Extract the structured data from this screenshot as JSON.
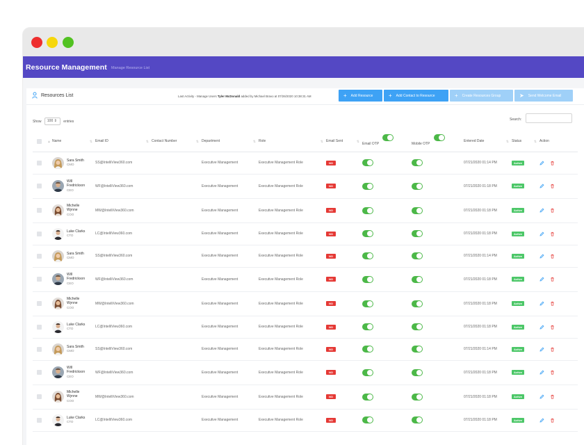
{
  "window": {
    "controls": [
      "close",
      "minimize",
      "maximize"
    ]
  },
  "app": {
    "title": "Resource Management",
    "breadcrumb": "Manage Resource List"
  },
  "list": {
    "title": "Resources List",
    "activity_prefix": "Last Activity - Manage Users",
    "activity_user": "Tyler McDonald",
    "activity_suffix": "added by Michael Bravo at 07/26/2020 10:38:31 AM"
  },
  "buttons": {
    "add_resource": "Add Resource",
    "add_contact": "Add Contact to Resource",
    "create_group": "Create Resources Group",
    "send_welcome": "Send Welcome Email"
  },
  "controls": {
    "show_label": "Show",
    "entries_value": "100",
    "entries_label": "entries",
    "search_label": "Search:"
  },
  "columns": [
    "Name",
    "Email ID",
    "Contact Number",
    "Department",
    "Role",
    "Email Sent",
    "Email OTP",
    "Mobile OTP",
    "Entered Date",
    "Status",
    "Action"
  ],
  "rows": [
    {
      "first": "Sara Smith",
      "last": "",
      "title": "CMO",
      "email": "SS@IntelliView360.com",
      "department": "Executive Management",
      "role": "Executive Management Role",
      "sent": "NO",
      "date": "07/21/2020 01:14 PM",
      "status": "Active",
      "avatar": "f1"
    },
    {
      "first": "Will",
      "last": "Fredrickson",
      "title": "CEO",
      "email": "WF@IntelliView360.com",
      "department": "Executive Management",
      "role": "Executive Management Role",
      "sent": "NO",
      "date": "07/21/2020 01:18 PM",
      "status": "Active",
      "avatar": "m1"
    },
    {
      "first": "Michelle",
      "last": "Wynne",
      "title": "COO",
      "email": "MW@IntelliView360.com",
      "department": "Executive Management",
      "role": "Executive Management Role",
      "sent": "NO",
      "date": "07/21/2020 01:18 PM",
      "status": "Active",
      "avatar": "f2"
    },
    {
      "first": "Luke Clarks",
      "last": "",
      "title": "CTO",
      "email": "LC@IntelliView360.com",
      "department": "Executive Management",
      "role": "Executive Management Role",
      "sent": "NO",
      "date": "07/21/2020 01:18 PM",
      "status": "Active",
      "avatar": "m2"
    },
    {
      "first": "Sara Smith",
      "last": "",
      "title": "CMO",
      "email": "SS@IntelliView360.com",
      "department": "Executive Management",
      "role": "Executive Management Role",
      "sent": "NO",
      "date": "07/21/2020 01:14 PM",
      "status": "Active",
      "avatar": "f1"
    },
    {
      "first": "Will",
      "last": "Fredrickson",
      "title": "CEO",
      "email": "WF@IntelliView360.com",
      "department": "Executive Management",
      "role": "Executive Management Role",
      "sent": "NO",
      "date": "07/21/2020 01:18 PM",
      "status": "Active",
      "avatar": "m1"
    },
    {
      "first": "Michelle",
      "last": "Wynne",
      "title": "COO",
      "email": "MW@IntelliView360.com",
      "department": "Executive Management",
      "role": "Executive Management Role",
      "sent": "NO",
      "date": "07/21/2020 01:18 PM",
      "status": "Active",
      "avatar": "f2"
    },
    {
      "first": "Luke Clarks",
      "last": "",
      "title": "CTO",
      "email": "LC@IntelliView360.com",
      "department": "Executive Management",
      "role": "Executive Management Role",
      "sent": "NO",
      "date": "07/21/2020 01:18 PM",
      "status": "Active",
      "avatar": "m2"
    },
    {
      "first": "Sara Smith",
      "last": "",
      "title": "CMO",
      "email": "SS@IntelliView360.com",
      "department": "Executive Management",
      "role": "Executive Management Role",
      "sent": "NO",
      "date": "07/21/2020 01:14 PM",
      "status": "Active",
      "avatar": "f1"
    },
    {
      "first": "Will",
      "last": "Fredrickson",
      "title": "CEO",
      "email": "WF@IntelliView360.com",
      "department": "Executive Management",
      "role": "Executive Management Role",
      "sent": "NO",
      "date": "07/21/2020 01:18 PM",
      "status": "Active",
      "avatar": "m1"
    },
    {
      "first": "Michelle",
      "last": "Wynne",
      "title": "COO",
      "email": "MW@IntelliView360.com",
      "department": "Executive Management",
      "role": "Executive Management Role",
      "sent": "NO",
      "date": "07/21/2020 01:18 PM",
      "status": "Active",
      "avatar": "f2"
    },
    {
      "first": "Luke Clarks",
      "last": "",
      "title": "CTO",
      "email": "LC@IntelliView360.com",
      "department": "Executive Management",
      "role": "Executive Management Role",
      "sent": "NO",
      "date": "07/21/2020 01:18 PM",
      "status": "Active",
      "avatar": "m2"
    }
  ],
  "colors": {
    "appbar": "#5448c4",
    "primary_button": "#3ea2f5",
    "toggle_on": "#4cb848",
    "no_badge": "#e53935",
    "active_badge": "#4cc768"
  }
}
